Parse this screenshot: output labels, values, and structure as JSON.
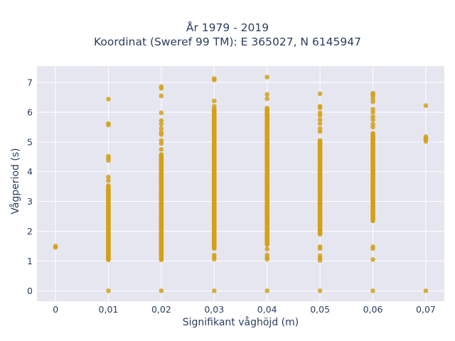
{
  "chart_data": {
    "type": "scatter",
    "title": [
      "År 1979 - 2019",
      "Koordinat (Sweref 99 TM): E 365027, N 6145947"
    ],
    "xlabel": "Signifikant våghöjd (m)",
    "ylabel": "Vågperiod (s)",
    "xlim": [
      -0.0035,
      0.0735
    ],
    "ylim": [
      -0.35,
      7.55
    ],
    "x_ticks": [
      0,
      0.01,
      0.02,
      0.03,
      0.04,
      0.05,
      0.06,
      0.07
    ],
    "x_tick_labels": [
      "0",
      "0,01",
      "0,02",
      "0,03",
      "0,04",
      "0,05",
      "0,06",
      "0,07"
    ],
    "y_ticks": [
      0,
      1,
      2,
      3,
      4,
      5,
      6,
      7
    ],
    "y_tick_labels": [
      "0",
      "1",
      "2",
      "3",
      "4",
      "5",
      "6",
      "7"
    ],
    "grid": true,
    "legend": false,
    "colors": {
      "marker": "#d4a017",
      "plot_bg": "#e5e6f0",
      "grid": "#ffffff",
      "text": "#2a3f5f"
    },
    "series": [
      {
        "columns": [
          {
            "x": 0.0,
            "y_points": [
              1.46,
              1.5
            ]
          },
          {
            "x": 0.01,
            "y_range": [
              1.04,
              3.55
            ],
            "y_points": [
              0,
              1.06,
              3.7,
              3.82,
              4.38,
              4.46,
              4.52,
              5.57,
              5.62,
              6.44
            ]
          },
          {
            "x": 0.02,
            "y_range": [
              1.04,
              4.6
            ],
            "y_points": [
              0,
              4.75,
              4.95,
              5.05,
              5.25,
              5.32,
              5.45,
              5.6,
              5.72,
              5.98,
              6.55,
              6.8,
              6.86
            ]
          },
          {
            "x": 0.03,
            "y_range": [
              1.42,
              6.1
            ],
            "y_points": [
              0,
              1.06,
              1.12,
              1.2,
              6.2,
              6.38,
              7.08,
              7.13
            ]
          },
          {
            "x": 0.04,
            "y_range": [
              1.55,
              6.15
            ],
            "y_points": [
              0,
              1.06,
              1.12,
              1.2,
              1.4,
              6.45,
              6.6,
              7.18
            ]
          },
          {
            "x": 0.05,
            "y_range": [
              1.9,
              5.05
            ],
            "y_points": [
              0,
              1.02,
              1.1,
              1.18,
              1.42,
              1.48,
              5.35,
              5.45,
              5.62,
              5.75,
              5.9,
              5.98,
              6.15,
              6.2,
              6.62
            ]
          },
          {
            "x": 0.06,
            "y_range": [
              2.35,
              5.3
            ],
            "y_points": [
              0,
              1.05,
              1.42,
              1.48,
              5.5,
              5.6,
              5.75,
              5.85,
              6.0,
              6.1,
              6.35,
              6.45,
              6.55,
              6.6,
              6.64
            ]
          },
          {
            "x": 0.07,
            "y_points": [
              0,
              5.02,
              5.08,
              5.12,
              5.18,
              6.22
            ]
          }
        ]
      }
    ]
  }
}
